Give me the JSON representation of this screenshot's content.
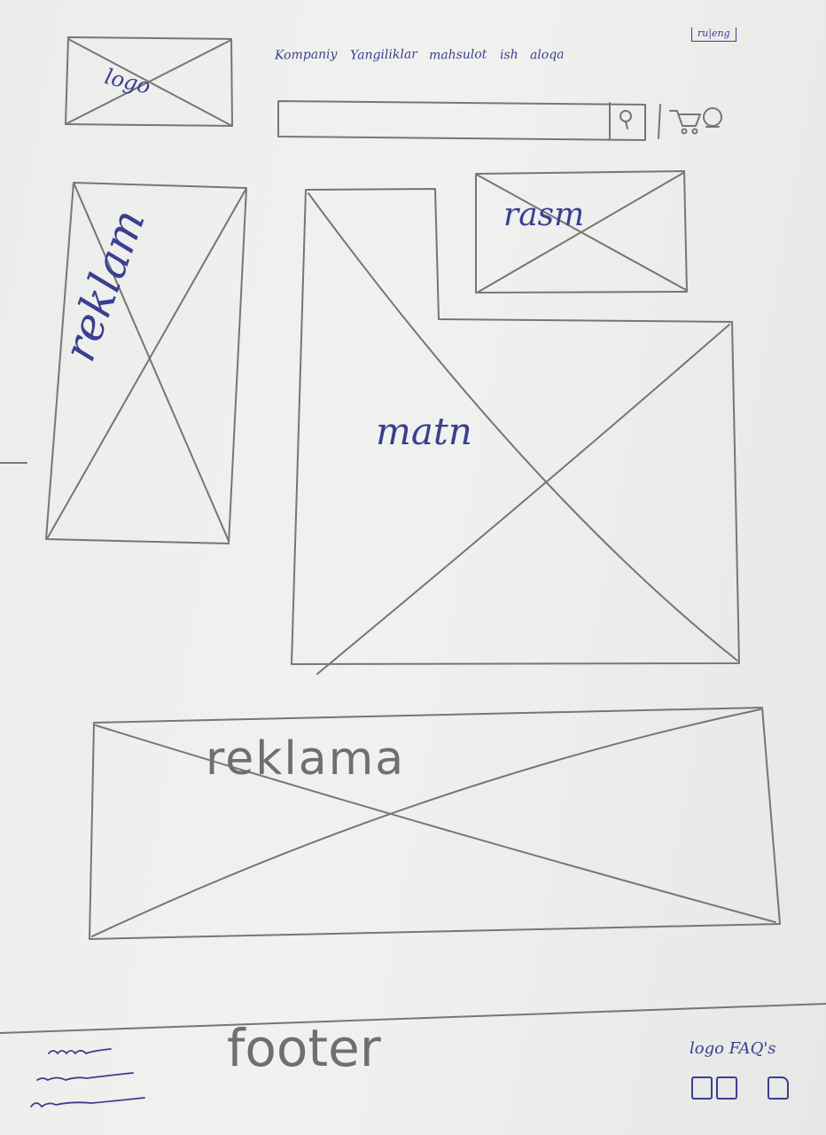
{
  "header": {
    "logo_label": "logo",
    "nav_items": [
      "Kompaniy",
      "Yangiliklar",
      "mahsulot",
      "ish",
      "aloqa"
    ],
    "language_switch": "ru|eng",
    "search": {
      "placeholder": ""
    },
    "icons": [
      "search-icon",
      "cart-icon",
      "user-icon"
    ]
  },
  "content": {
    "side_ad_label": "reklam",
    "image_label": "rasm",
    "text_block_label": "matn",
    "wide_ad_label": "reklama"
  },
  "footer": {
    "label": "footer",
    "links_label": "logo FAQ's",
    "social_icons": [
      "social-icon-1",
      "social-icon-2",
      "social-icon-3"
    ]
  },
  "colors": {
    "pen": "#3a3f8f",
    "pencil": "#6f6f6f",
    "paper": "#ececea"
  }
}
